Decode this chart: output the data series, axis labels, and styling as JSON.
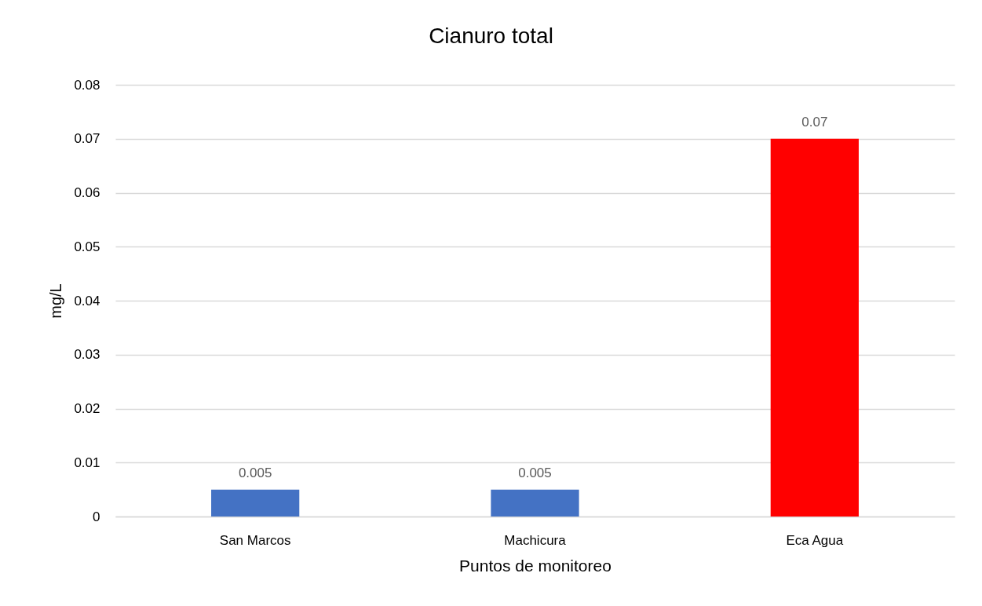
{
  "chart_data": {
    "type": "bar",
    "title": "Cianuro total",
    "xlabel": "Puntos de monitoreo",
    "ylabel": "mg/L",
    "categories": [
      "San Marcos",
      "Machicura",
      "Eca Agua"
    ],
    "values": [
      0.005,
      0.005,
      0.07
    ],
    "colors": [
      "#4472c4",
      "#4472c4",
      "#ff0000"
    ],
    "ylim": [
      0,
      0.08
    ],
    "yticks": [
      0,
      0.01,
      0.02,
      0.03,
      0.04,
      0.05,
      0.06,
      0.07,
      0.08
    ],
    "grid": "y",
    "data_labels": true
  }
}
